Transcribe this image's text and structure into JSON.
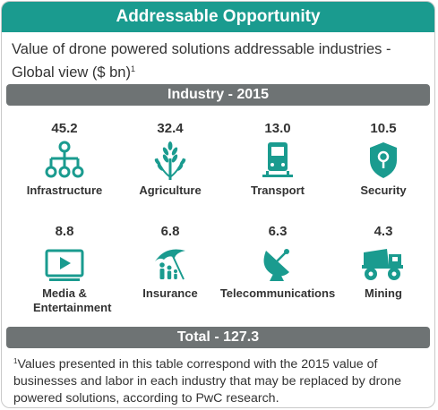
{
  "header": {
    "title": "Addressable Opportunity"
  },
  "subtitle": {
    "text": "Value of drone powered solutions addressable industries - Global view ($ bn)",
    "sup": "1"
  },
  "section_title": "Industry - 2015",
  "accent_color": "#1a9b8f",
  "bar_color": "#6e7374",
  "industries": [
    {
      "value": "45.2",
      "label": "Infrastructure",
      "icon": "network-icon"
    },
    {
      "value": "32.4",
      "label": "Agriculture",
      "icon": "wheat-icon"
    },
    {
      "value": "13.0",
      "label": "Transport",
      "icon": "train-icon"
    },
    {
      "value": "10.5",
      "label": "Security",
      "icon": "shield-icon"
    },
    {
      "value": "8.8",
      "label": "Media & Entertainment",
      "icon": "play-screen-icon"
    },
    {
      "value": "6.8",
      "label": "Insurance",
      "icon": "umbrella-family-icon"
    },
    {
      "value": "6.3",
      "label": "Telecommunications",
      "icon": "satellite-dish-icon"
    },
    {
      "value": "4.3",
      "label": "Mining",
      "icon": "mining-truck-icon"
    }
  ],
  "total": "Total - 127.3",
  "footnote": {
    "sup": "1",
    "text": "Values presented in this table correspond with the 2015 value of businesses and labor in each industry that may be replaced by drone powered solutions, according to PwC research."
  }
}
